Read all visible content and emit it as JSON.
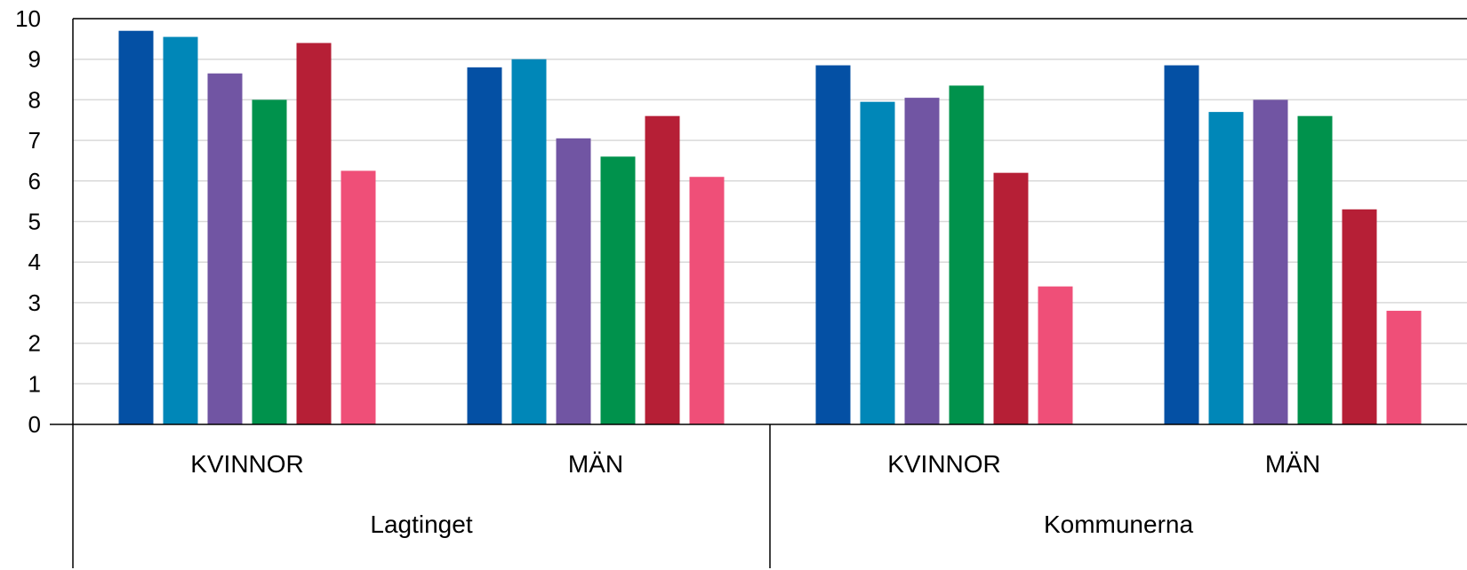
{
  "chart_data": {
    "type": "bar",
    "title": "",
    "xlabel": "",
    "ylabel": "",
    "ylim": [
      0,
      10
    ],
    "yticks": [
      "0",
      "1",
      "2",
      "3",
      "4",
      "5",
      "6",
      "7",
      "8",
      "9",
      "10"
    ],
    "grid": true,
    "legend": "none",
    "groups": [
      {
        "label": "Lagtinget",
        "categories": [
          {
            "label": "KVINNOR",
            "values": [
              9.7,
              9.55,
              8.65,
              8.0,
              9.4,
              6.25
            ]
          },
          {
            "label": "MÄN",
            "values": [
              8.8,
              9.0,
              7.05,
              6.6,
              7.6,
              6.1
            ]
          }
        ]
      },
      {
        "label": "Kommunerna",
        "categories": [
          {
            "label": "KVINNOR",
            "values": [
              8.85,
              7.95,
              8.05,
              8.35,
              6.2,
              3.4
            ]
          },
          {
            "label": "MÄN",
            "values": [
              8.85,
              7.7,
              8.0,
              7.6,
              5.3,
              2.8
            ]
          }
        ]
      }
    ],
    "series_colors": [
      "#0450a4",
      "#0087b8",
      "#7155a3",
      "#00924c",
      "#b61f36",
      "#ef4f78"
    ]
  }
}
